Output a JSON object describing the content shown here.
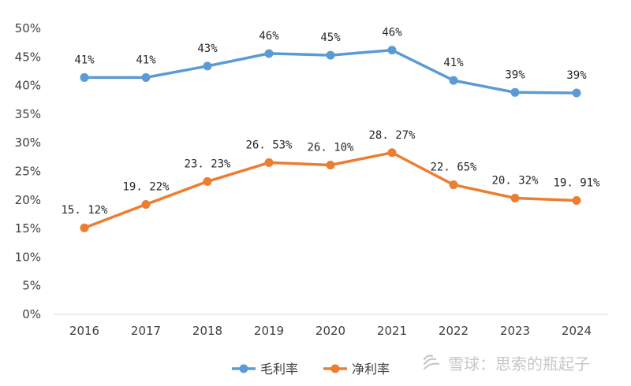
{
  "chart_data": {
    "type": "line",
    "categories": [
      "2016",
      "2017",
      "2018",
      "2019",
      "2020",
      "2021",
      "2022",
      "2023",
      "2024"
    ],
    "ylim": [
      0,
      50
    ],
    "y_ticks": [
      "0%",
      "5%",
      "10%",
      "15%",
      "20%",
      "25%",
      "30%",
      "35%",
      "40%",
      "45%",
      "50%"
    ],
    "grid": false,
    "legend_position": "bottom",
    "series": [
      {
        "name": "毛利率",
        "color": "#5b9bd5",
        "values": [
          41.4,
          41.4,
          43.4,
          45.6,
          45.3,
          46.2,
          40.9,
          38.8,
          38.7
        ],
        "labels": [
          "41%",
          "41%",
          "43%",
          "46%",
          "45%",
          "46%",
          "41%",
          "39%",
          "39%"
        ]
      },
      {
        "name": "净利率",
        "color": "#ed7d31",
        "values": [
          15.12,
          19.22,
          23.23,
          26.53,
          26.1,
          28.27,
          22.65,
          20.32,
          19.91
        ],
        "labels": [
          "15. 12%",
          "19. 22%",
          "23. 23%",
          "26. 53%",
          "26. 10%",
          "28. 27%",
          "22. 65%",
          "20. 32%",
          "19. 91%"
        ]
      }
    ]
  },
  "watermark": {
    "text": "雪球：思索的瓶起子"
  }
}
